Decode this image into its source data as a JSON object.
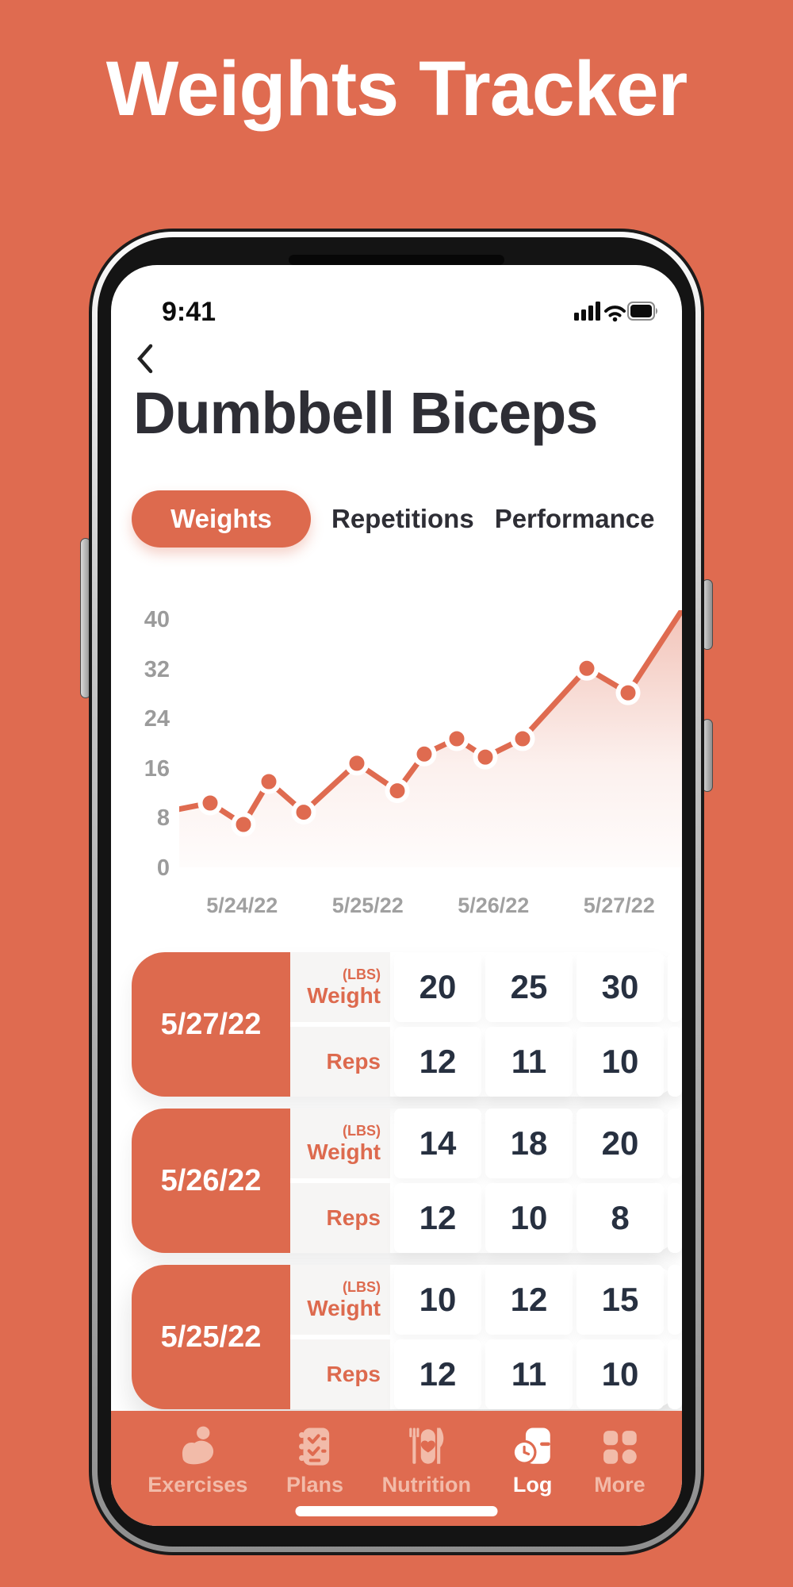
{
  "page": {
    "title": "Weights Tracker"
  },
  "colors": {
    "orange": "#DF6B50",
    "orange_deep": "#DD6A4E",
    "dark": "#2E2E35",
    "navy": "#273040",
    "gray": "#9B9B9B",
    "nav_inactive": "#F2BBA9",
    "label_bg": "#F6F5F4"
  },
  "phone": {
    "status": {
      "time": "9:41",
      "icons": [
        "signal-bars-icon",
        "wifi-icon",
        "battery-full-icon"
      ]
    },
    "header": {
      "back_icon": "chevron-left",
      "title": "Dumbbell Biceps"
    },
    "tabs": [
      {
        "label": "Weights",
        "active": true
      },
      {
        "label": "Repetitions",
        "active": false
      },
      {
        "label": "Performance",
        "active": false
      }
    ],
    "chart_data": {
      "type": "line",
      "series_name": "Weight (lbs)",
      "x_labels": [
        "5/24/22",
        "5/25/22",
        "5/26/22",
        "5/27/22"
      ],
      "y_ticks": [
        0,
        8,
        16,
        24,
        32,
        40
      ],
      "ylim": [
        0,
        42
      ],
      "grid": false,
      "line_color": "#DF6B50",
      "dot_color": "#DF6B50",
      "area_fade": true,
      "points": [
        {
          "x": 0,
          "v": 9.5,
          "dot": false
        },
        {
          "x": 39,
          "v": 10.5,
          "dot": true
        },
        {
          "x": 81,
          "v": 7,
          "dot": true
        },
        {
          "x": 113,
          "v": 14,
          "dot": true
        },
        {
          "x": 157,
          "v": 9,
          "dot": true
        },
        {
          "x": 224,
          "v": 17,
          "dot": true
        },
        {
          "x": 275,
          "v": 12.5,
          "dot": true
        },
        {
          "x": 309,
          "v": 18.5,
          "dot": true
        },
        {
          "x": 350,
          "v": 21,
          "dot": true
        },
        {
          "x": 386,
          "v": 18,
          "dot": true
        },
        {
          "x": 433,
          "v": 21,
          "dot": true
        },
        {
          "x": 514,
          "v": 32.5,
          "dot": true
        },
        {
          "x": 566,
          "v": 28.5,
          "dot": true
        },
        {
          "x": 634,
          "v": 42,
          "dot": false
        }
      ]
    },
    "table": {
      "unit_label": "(LBS)",
      "weight_label": "Weight",
      "reps_label": "Reps",
      "groups": [
        {
          "date": "5/27/22",
          "weights": [
            "20",
            "25",
            "30"
          ],
          "reps": [
            "12",
            "11",
            "10"
          ]
        },
        {
          "date": "5/26/22",
          "weights": [
            "14",
            "18",
            "20"
          ],
          "reps": [
            "12",
            "10",
            "8"
          ]
        },
        {
          "date": "5/25/22",
          "weights": [
            "10",
            "12",
            "15"
          ],
          "reps": [
            "12",
            "11",
            "10"
          ]
        }
      ]
    },
    "nav": {
      "items": [
        {
          "label": "Exercises",
          "icon": "exercises-icon",
          "active": false
        },
        {
          "label": "Plans",
          "icon": "plans-icon",
          "active": false
        },
        {
          "label": "Nutrition",
          "icon": "nutrition-icon",
          "active": false
        },
        {
          "label": "Log",
          "icon": "log-icon",
          "active": true
        },
        {
          "label": "More",
          "icon": "more-icon",
          "active": false
        }
      ]
    }
  }
}
